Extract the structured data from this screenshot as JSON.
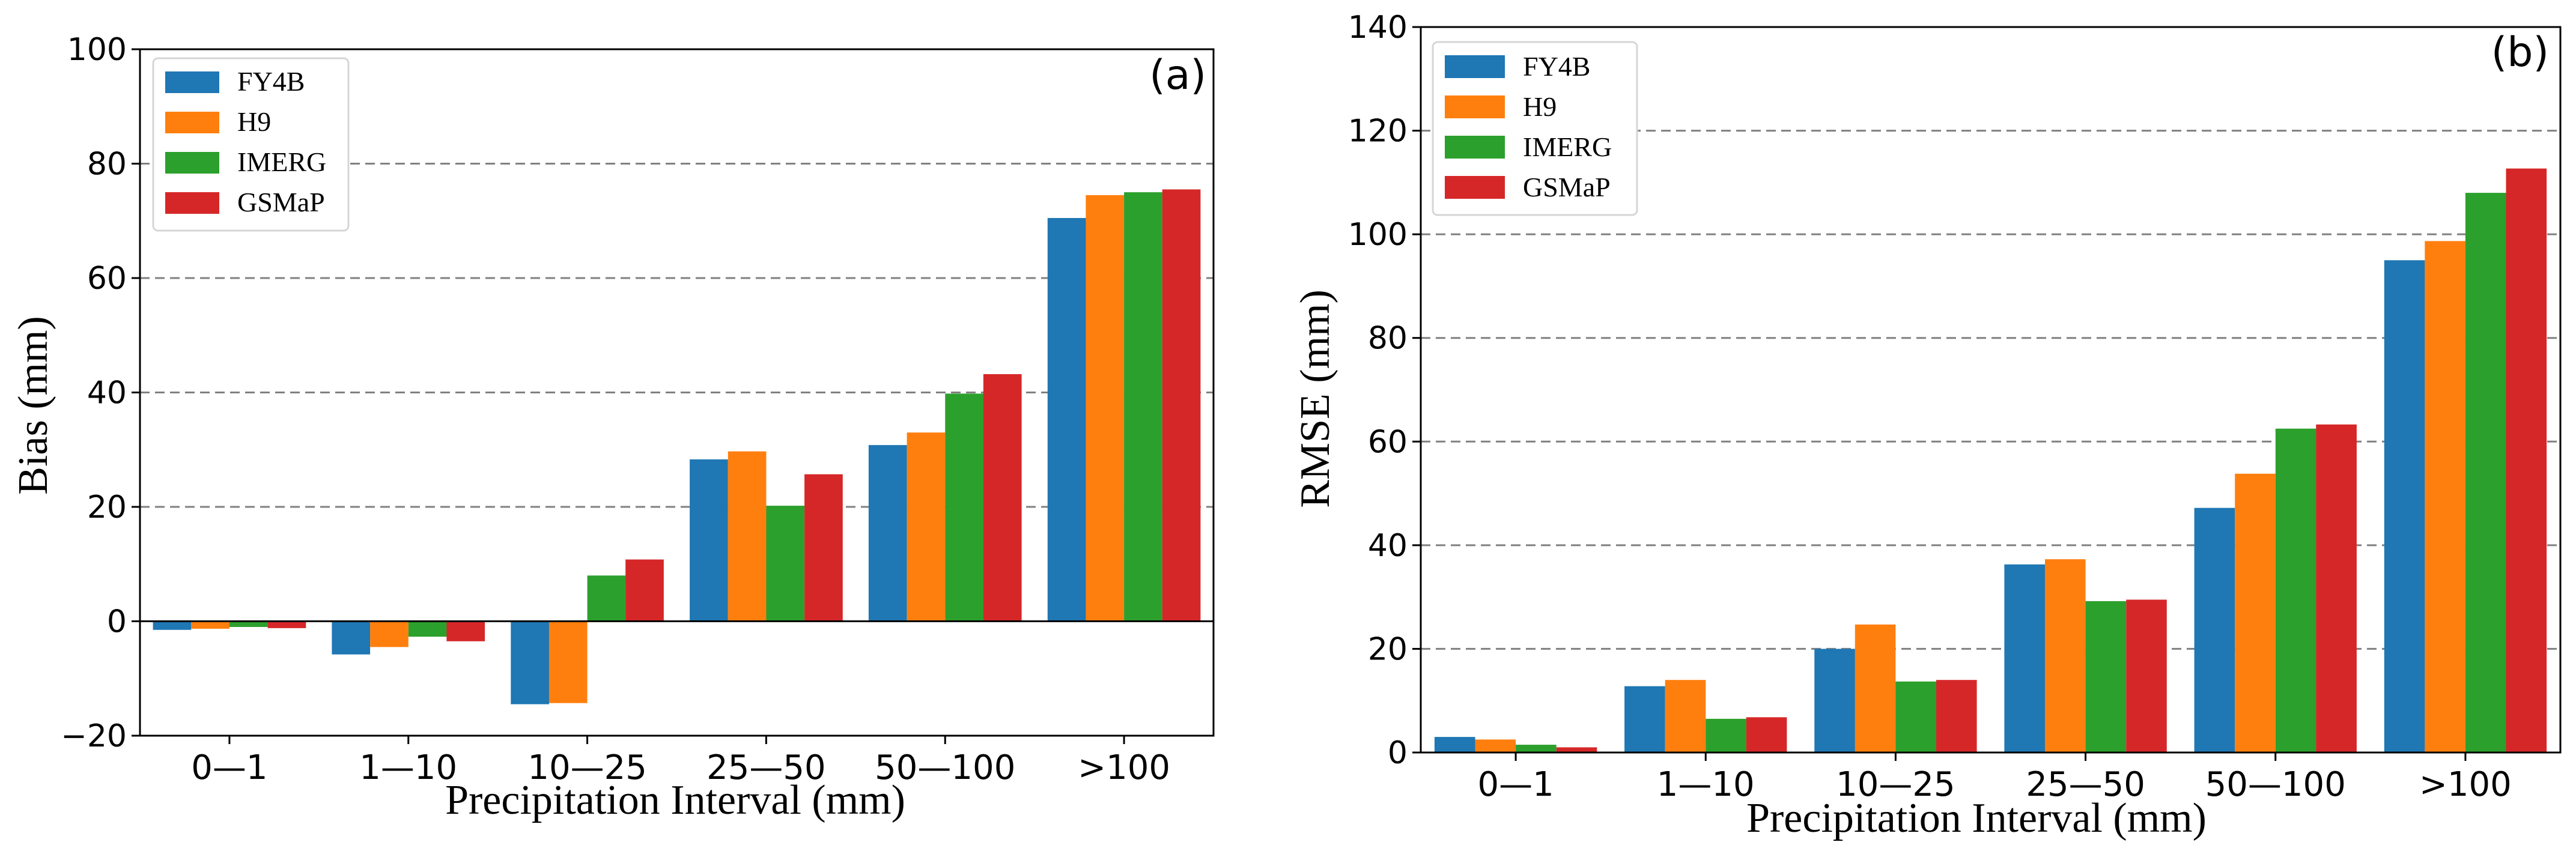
{
  "colors": {
    "FY4B": "#1f77b4",
    "H9": "#ff7f0e",
    "IMERG": "#2ca02c",
    "GSMaP": "#d62728"
  },
  "chart_data": [
    {
      "type": "bar",
      "panel_label": "(a)",
      "title": "",
      "xlabel": "Precipitation Interval (mm)",
      "ylabel": "Bias (mm)",
      "ylim": [
        -20,
        100
      ],
      "yticks": [
        -20,
        0,
        20,
        40,
        60,
        80,
        100
      ],
      "ytick_labels": [
        "−20",
        "0",
        "20",
        "40",
        "60",
        "80",
        "100"
      ],
      "grid_values": [
        20,
        40,
        60,
        80
      ],
      "zero_line": true,
      "legend_position": "top-left",
      "categories": [
        "0—1",
        "1—10",
        "10—25",
        "25—50",
        "50—100",
        ">100"
      ],
      "series": [
        {
          "name": "FY4B",
          "values": [
            -1.5,
            -5.8,
            -14.5,
            28.3,
            30.8,
            70.5
          ]
        },
        {
          "name": "H9",
          "values": [
            -1.3,
            -4.5,
            -14.3,
            29.7,
            33.0,
            74.5
          ]
        },
        {
          "name": "IMERG",
          "values": [
            -1.0,
            -2.7,
            8.0,
            20.2,
            39.8,
            75.0
          ]
        },
        {
          "name": "GSMaP",
          "values": [
            -1.2,
            -3.5,
            10.8,
            25.7,
            43.2,
            75.5
          ]
        }
      ]
    },
    {
      "type": "bar",
      "panel_label": "(b)",
      "title": "",
      "xlabel": "Precipitation Interval (mm)",
      "ylabel": "RMSE (mm)",
      "ylim": [
        0,
        140
      ],
      "yticks": [
        0,
        20,
        40,
        60,
        80,
        100,
        120,
        140
      ],
      "ytick_labels": [
        "0",
        "20",
        "40",
        "60",
        "80",
        "100",
        "120",
        "140"
      ],
      "grid_values": [
        20,
        40,
        60,
        80,
        100,
        120
      ],
      "zero_line": false,
      "legend_position": "top-left",
      "categories": [
        "0—1",
        "1—10",
        "10—25",
        "25—50",
        "50—100",
        ">100"
      ],
      "series": [
        {
          "name": "FY4B",
          "values": [
            3.0,
            12.8,
            20.0,
            36.3,
            47.2,
            95.0
          ]
        },
        {
          "name": "H9",
          "values": [
            2.5,
            14.0,
            24.7,
            37.3,
            53.8,
            98.7
          ]
        },
        {
          "name": "IMERG",
          "values": [
            1.5,
            6.5,
            13.7,
            29.2,
            62.5,
            108.0
          ]
        },
        {
          "name": "GSMaP",
          "values": [
            1.0,
            6.8,
            14.0,
            29.5,
            63.3,
            112.7
          ]
        }
      ]
    }
  ]
}
